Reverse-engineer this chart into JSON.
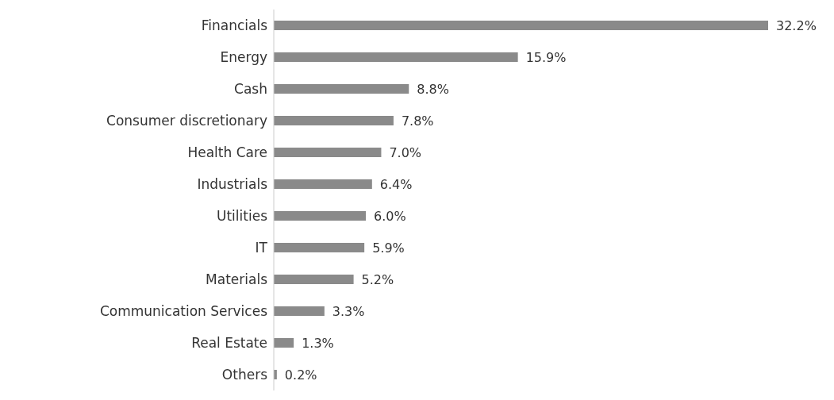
{
  "chart_data": {
    "type": "bar",
    "orientation": "horizontal",
    "categories": [
      "Financials",
      "Energy",
      "Cash",
      "Consumer discretionary",
      "Health Care",
      "Industrials",
      "Utilities",
      "IT",
      "Materials",
      "Communication Services",
      "Real Estate",
      "Others"
    ],
    "values": [
      32.2,
      15.9,
      8.8,
      7.8,
      7.0,
      6.4,
      6.0,
      5.9,
      5.2,
      3.3,
      1.3,
      0.2
    ],
    "value_labels": [
      "32.2%",
      "15.9%",
      "8.8%",
      "7.8%",
      "7.0%",
      "6.4%",
      "6.0%",
      "5.9%",
      "5.2%",
      "3.3%",
      "1.3%",
      "0.2%"
    ],
    "color": "#8a8a8a"
  }
}
